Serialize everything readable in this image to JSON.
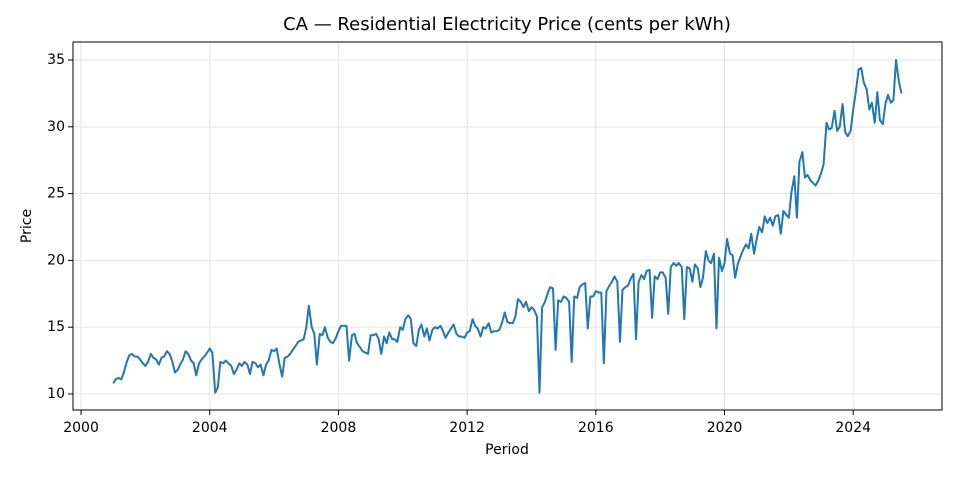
{
  "chart_data": {
    "type": "line",
    "title": "CA — Residential Electricity Price (cents per kWh)",
    "xlabel": "Period",
    "ylabel": "Price",
    "color": "#1f77b4",
    "grid": true,
    "xlim": [
      1999.75,
      2026.76
    ],
    "ylim": [
      8.8,
      36.35
    ],
    "xticks": [
      2000,
      2004,
      2008,
      2012,
      2016,
      2020,
      2024
    ],
    "yticks": [
      10,
      15,
      20,
      25,
      30,
      35
    ],
    "x": [
      2001,
      2001.08,
      2001.17,
      2001.25,
      2001.33,
      2001.42,
      2001.5,
      2001.58,
      2001.67,
      2001.75,
      2001.83,
      2001.92,
      2002,
      2002.08,
      2002.17,
      2002.25,
      2002.33,
      2002.42,
      2002.5,
      2002.58,
      2002.67,
      2002.75,
      2002.83,
      2002.92,
      2003,
      2003.08,
      2003.17,
      2003.25,
      2003.33,
      2003.42,
      2003.5,
      2003.58,
      2003.67,
      2003.75,
      2003.83,
      2003.92,
      2004,
      2004.08,
      2004.17,
      2004.25,
      2004.33,
      2004.42,
      2004.5,
      2004.58,
      2004.67,
      2004.75,
      2004.83,
      2004.92,
      2005,
      2005.08,
      2005.17,
      2005.25,
      2005.33,
      2005.42,
      2005.5,
      2005.58,
      2005.67,
      2005.75,
      2005.83,
      2005.92,
      2006,
      2006.08,
      2006.17,
      2006.25,
      2006.33,
      2006.42,
      2006.5,
      2006.58,
      2006.67,
      2006.75,
      2006.83,
      2006.92,
      2007,
      2007.08,
      2007.17,
      2007.25,
      2007.33,
      2007.42,
      2007.5,
      2007.58,
      2007.67,
      2007.75,
      2007.83,
      2007.92,
      2008,
      2008.08,
      2008.17,
      2008.25,
      2008.33,
      2008.42,
      2008.5,
      2008.58,
      2008.67,
      2008.75,
      2008.83,
      2008.92,
      2009,
      2009.08,
      2009.17,
      2009.25,
      2009.33,
      2009.42,
      2009.5,
      2009.58,
      2009.67,
      2009.75,
      2009.83,
      2009.92,
      2010,
      2010.08,
      2010.17,
      2010.25,
      2010.33,
      2010.42,
      2010.5,
      2010.58,
      2010.67,
      2010.75,
      2010.83,
      2010.92,
      2011,
      2011.08,
      2011.17,
      2011.25,
      2011.33,
      2011.42,
      2011.5,
      2011.58,
      2011.67,
      2011.75,
      2011.83,
      2011.92,
      2012,
      2012.08,
      2012.17,
      2012.25,
      2012.33,
      2012.42,
      2012.5,
      2012.58,
      2012.67,
      2012.75,
      2012.83,
      2012.92,
      2013,
      2013.08,
      2013.17,
      2013.25,
      2013.33,
      2013.42,
      2013.5,
      2013.58,
      2013.67,
      2013.75,
      2013.83,
      2013.92,
      2014,
      2014.08,
      2014.17,
      2014.25,
      2014.33,
      2014.42,
      2014.5,
      2014.58,
      2014.67,
      2014.75,
      2014.83,
      2014.92,
      2015,
      2015.08,
      2015.17,
      2015.25,
      2015.33,
      2015.42,
      2015.5,
      2015.58,
      2015.67,
      2015.75,
      2015.83,
      2015.92,
      2016,
      2016.08,
      2016.17,
      2016.25,
      2016.33,
      2016.42,
      2016.5,
      2016.58,
      2016.67,
      2016.75,
      2016.83,
      2016.92,
      2017,
      2017.08,
      2017.17,
      2017.25,
      2017.33,
      2017.42,
      2017.5,
      2017.58,
      2017.67,
      2017.75,
      2017.83,
      2017.92,
      2018,
      2018.08,
      2018.17,
      2018.25,
      2018.33,
      2018.42,
      2018.5,
      2018.58,
      2018.67,
      2018.75,
      2018.83,
      2018.92,
      2019,
      2019.08,
      2019.17,
      2019.25,
      2019.33,
      2019.42,
      2019.5,
      2019.58,
      2019.67,
      2019.75,
      2019.83,
      2019.92,
      2020,
      2020.08,
      2020.17,
      2020.25,
      2020.33,
      2020.42,
      2020.5,
      2020.58,
      2020.67,
      2020.75,
      2020.83,
      2020.92,
      2021,
      2021.08,
      2021.17,
      2021.25,
      2021.33,
      2021.42,
      2021.5,
      2021.58,
      2021.67,
      2021.75,
      2021.83,
      2021.92,
      2022,
      2022.08,
      2022.17,
      2022.25,
      2022.33,
      2022.42,
      2022.5,
      2022.58,
      2022.67,
      2022.75,
      2022.83,
      2022.92,
      2023,
      2023.08,
      2023.17,
      2023.25,
      2023.33,
      2023.42,
      2023.5,
      2023.58,
      2023.67,
      2023.75,
      2023.83,
      2023.92,
      2024,
      2024.08,
      2024.17,
      2024.25,
      2024.33,
      2024.42,
      2024.5,
      2024.58,
      2024.67,
      2024.75,
      2024.83,
      2024.92,
      2025,
      2025.08,
      2025.17,
      2025.25,
      2025.33,
      2025.42,
      2025.5
    ],
    "values": [
      10.8,
      11.1,
      11.2,
      11.1,
      11.6,
      12.4,
      12.9,
      13.0,
      12.8,
      12.8,
      12.6,
      12.3,
      12.1,
      12.4,
      13.0,
      12.7,
      12.6,
      12.2,
      12.7,
      12.8,
      13.2,
      13.0,
      12.5,
      11.6,
      11.8,
      12.2,
      12.6,
      13.2,
      13.0,
      12.5,
      12.3,
      11.4,
      12.3,
      12.6,
      12.8,
      13.1,
      13.4,
      13.1,
      10.1,
      10.5,
      12.4,
      12.3,
      12.5,
      12.3,
      12.1,
      11.5,
      11.8,
      12.3,
      12.1,
      12.4,
      12.2,
      11.5,
      12.4,
      12.3,
      12.0,
      12.2,
      11.4,
      12.2,
      12.5,
      13.3,
      13.2,
      13.4,
      12.2,
      11.3,
      12.7,
      12.8,
      13.0,
      13.3,
      13.6,
      13.9,
      14.0,
      14.1,
      15.0,
      16.6,
      15.0,
      14.5,
      12.2,
      14.5,
      14.4,
      15.0,
      14.2,
      13.9,
      13.8,
      14.2,
      14.7,
      15.1,
      15.1,
      15.1,
      12.5,
      14.4,
      14.5,
      13.8,
      13.5,
      13.2,
      13.1,
      13.0,
      14.4,
      14.4,
      14.5,
      14.1,
      13.0,
      14.3,
      13.8,
      14.6,
      14.1,
      14.1,
      13.9,
      15.0,
      14.8,
      15.6,
      15.9,
      15.6,
      13.8,
      13.6,
      14.8,
      15.2,
      14.3,
      14.9,
      14.0,
      14.8,
      15.0,
      14.9,
      15.1,
      14.7,
      14.2,
      14.6,
      14.9,
      15.2,
      14.5,
      14.3,
      14.3,
      14.2,
      14.6,
      14.7,
      15.6,
      15.1,
      14.9,
      14.3,
      15.0,
      14.9,
      15.3,
      14.6,
      14.7,
      14.7,
      14.8,
      15.3,
      16.1,
      15.4,
      15.3,
      15.3,
      15.8,
      17.1,
      16.9,
      16.5,
      16.9,
      16.2,
      16.5,
      16.3,
      15.8,
      10.1,
      16.5,
      16.9,
      17.5,
      18.0,
      17.9,
      13.3,
      17.0,
      16.9,
      17.3,
      17.2,
      16.9,
      12.4,
      17.3,
      17.2,
      18.0,
      18.2,
      18.3,
      14.9,
      17.3,
      17.3,
      17.7,
      17.6,
      17.6,
      12.3,
      17.7,
      18.1,
      18.4,
      18.8,
      18.4,
      13.9,
      17.8,
      18.0,
      18.1,
      18.6,
      19.0,
      14.1,
      18.4,
      18.9,
      18.6,
      19.2,
      19.3,
      15.7,
      18.8,
      18.6,
      19.1,
      19.1,
      18.7,
      16.0,
      19.5,
      19.8,
      19.6,
      19.8,
      19.5,
      15.6,
      19.5,
      19.4,
      18.4,
      19.7,
      19.4,
      18.0,
      18.7,
      20.7,
      20.0,
      19.8,
      20.5,
      14.9,
      20.2,
      19.2,
      19.8,
      21.6,
      20.5,
      20.4,
      18.7,
      19.8,
      20.3,
      20.8,
      21.2,
      20.9,
      22.0,
      20.5,
      21.6,
      22.5,
      22.1,
      23.3,
      22.8,
      23.2,
      22.6,
      23.3,
      23.4,
      22.0,
      23.7,
      23.4,
      23.2,
      25.1,
      26.3,
      23.2,
      27.4,
      28.1,
      26.2,
      26.4,
      26.0,
      25.8,
      25.6,
      26.0,
      26.5,
      27.2,
      30.3,
      29.8,
      29.9,
      31.2,
      29.7,
      30.0,
      31.7,
      29.6,
      29.3,
      29.7,
      31.3,
      32.6,
      34.3,
      34.4,
      33.3,
      32.8,
      31.3,
      31.8,
      30.3,
      32.6,
      30.5,
      30.2,
      31.7,
      32.4,
      31.8,
      32.0,
      35.0,
      33.4,
      32.5
    ]
  }
}
